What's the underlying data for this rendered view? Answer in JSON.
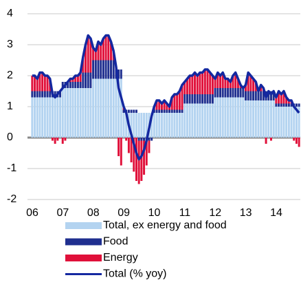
{
  "chart_data": {
    "type": "bar",
    "categories": [
      "06",
      null,
      null,
      null,
      null,
      null,
      null,
      null,
      null,
      null,
      null,
      null,
      "07",
      null,
      null,
      null,
      null,
      null,
      null,
      null,
      null,
      null,
      null,
      null,
      "08",
      null,
      null,
      null,
      null,
      null,
      null,
      null,
      null,
      null,
      null,
      null,
      "09",
      null,
      null,
      null,
      null,
      null,
      null,
      null,
      null,
      null,
      null,
      null,
      "10",
      null,
      null,
      null,
      null,
      null,
      null,
      null,
      null,
      null,
      null,
      null,
      "11",
      null,
      null,
      null,
      null,
      null,
      null,
      null,
      null,
      null,
      null,
      null,
      "12",
      null,
      null,
      null,
      null,
      null,
      null,
      null,
      null,
      null,
      null,
      null,
      "13",
      null,
      null,
      null,
      null,
      null,
      null,
      null,
      null,
      null,
      null,
      null,
      "14",
      null,
      null,
      null,
      null,
      null,
      null,
      null,
      null,
      null
    ],
    "series": [
      {
        "name": "Total, ex energy and food",
        "color": "#b3d3f0",
        "values": [
          1.3,
          1.3,
          1.3,
          1.3,
          1.3,
          1.3,
          1.3,
          1.3,
          1.3,
          1.3,
          1.3,
          1.3,
          1.6,
          1.6,
          1.6,
          1.6,
          1.6,
          1.6,
          1.6,
          1.6,
          1.6,
          1.6,
          1.6,
          1.6,
          1.9,
          1.9,
          1.9,
          1.9,
          1.9,
          1.9,
          1.9,
          1.9,
          1.9,
          1.9,
          1.9,
          1.9,
          0.8,
          0.8,
          0.8,
          0.8,
          0.8,
          0.8,
          0.8,
          0.8,
          0.8,
          0.8,
          0.8,
          0.8,
          0.8,
          0.8,
          0.8,
          0.8,
          0.8,
          0.8,
          0.8,
          0.8,
          0.8,
          0.8,
          0.8,
          0.8,
          1.1,
          1.1,
          1.1,
          1.1,
          1.1,
          1.1,
          1.1,
          1.1,
          1.1,
          1.1,
          1.1,
          1.1,
          1.3,
          1.3,
          1.3,
          1.3,
          1.3,
          1.3,
          1.3,
          1.3,
          1.3,
          1.3,
          1.3,
          1.3,
          1.2,
          1.2,
          1.2,
          1.2,
          1.2,
          1.2,
          1.2,
          1.2,
          1.2,
          1.2,
          1.2,
          1.2,
          1.0,
          1.0,
          1.0,
          1.0,
          1.0,
          1.0,
          1.0,
          1.0,
          1.0,
          1.0
        ]
      },
      {
        "name": "Food",
        "color": "#1f2f8f",
        "values": [
          0.2,
          0.2,
          0.2,
          0.2,
          0.2,
          0.2,
          0.2,
          0.2,
          0.2,
          0.2,
          0.2,
          0.2,
          0.2,
          0.2,
          0.2,
          0.2,
          0.2,
          0.2,
          0.2,
          0.2,
          0.5,
          0.5,
          0.5,
          0.5,
          0.6,
          0.6,
          0.6,
          0.6,
          0.6,
          0.6,
          0.6,
          0.6,
          0.6,
          0.3,
          0.3,
          0.3,
          0.1,
          0.1,
          0.1,
          0.1,
          0.1,
          0.1,
          -0.1,
          -0.1,
          -0.1,
          -0.1,
          -0.1,
          -0.1,
          0.1,
          0.1,
          0.1,
          0.1,
          0.1,
          0.1,
          0.1,
          0.1,
          0.1,
          0.1,
          0.1,
          0.1,
          0.3,
          0.3,
          0.3,
          0.3,
          0.3,
          0.3,
          0.3,
          0.3,
          0.3,
          0.3,
          0.3,
          0.3,
          0.3,
          0.3,
          0.3,
          0.3,
          0.3,
          0.3,
          0.3,
          0.3,
          0.3,
          0.3,
          0.3,
          0.3,
          0.3,
          0.3,
          0.3,
          0.3,
          0.3,
          0.3,
          0.3,
          0.3,
          0.3,
          0.3,
          0.3,
          0.3,
          0.1,
          0.1,
          0.1,
          0.1,
          0.1,
          0.1,
          0.1,
          0.1,
          0.1,
          0.1
        ]
      },
      {
        "name": "Energy",
        "color": "#e0103a",
        "values": [
          0.5,
          0.5,
          0.4,
          0.6,
          0.6,
          0.5,
          0.5,
          0.4,
          -0.1,
          -0.2,
          -0.1,
          0.0,
          -0.2,
          -0.1,
          0.0,
          0.1,
          0.1,
          0.2,
          0.2,
          0.3,
          0.5,
          0.9,
          1.2,
          1.1,
          0.4,
          0.3,
          0.6,
          0.5,
          0.7,
          0.8,
          0.8,
          0.6,
          0.3,
          0.1,
          -0.6,
          -0.9,
          0.1,
          -0.1,
          -0.5,
          -0.8,
          -1.1,
          -1.4,
          -1.4,
          -1.3,
          -1.1,
          -0.8,
          -0.4,
          0.0,
          0.1,
          0.3,
          0.3,
          0.2,
          0.3,
          0.2,
          0.1,
          0.4,
          0.5,
          0.5,
          0.6,
          0.8,
          0.4,
          0.5,
          0.6,
          0.6,
          0.7,
          0.6,
          0.7,
          0.7,
          0.8,
          0.8,
          0.7,
          0.6,
          0.3,
          0.5,
          0.4,
          0.5,
          0.3,
          0.3,
          0.2,
          0.4,
          0.5,
          0.3,
          0.1,
          0.0,
          0.2,
          0.6,
          0.5,
          0.4,
          0.3,
          0.0,
          0.2,
          0.1,
          -0.2,
          0.0,
          -0.1,
          0.0,
          0.2,
          0.4,
          0.3,
          0.4,
          0.2,
          0.1,
          0.1,
          -0.1,
          -0.2,
          -0.3
        ]
      },
      {
        "name": "Total (% yoy)",
        "type": "line",
        "color": "#1428a0",
        "values": [
          2.0,
          2.0,
          1.9,
          2.1,
          2.1,
          2.0,
          2.0,
          1.9,
          1.4,
          1.3,
          1.4,
          1.5,
          1.6,
          1.7,
          1.8,
          1.9,
          1.9,
          2.0,
          2.0,
          2.1,
          2.6,
          3.0,
          3.3,
          3.2,
          2.9,
          2.8,
          3.1,
          3.0,
          3.2,
          3.3,
          3.3,
          3.1,
          2.8,
          2.3,
          1.6,
          1.3,
          1.0,
          0.8,
          0.4,
          0.1,
          -0.2,
          -0.5,
          -0.7,
          -0.6,
          -0.4,
          -0.1,
          0.3,
          0.7,
          1.0,
          1.2,
          1.2,
          1.1,
          1.2,
          1.1,
          1.0,
          1.3,
          1.4,
          1.4,
          1.5,
          1.7,
          1.8,
          1.9,
          2.0,
          2.0,
          2.1,
          2.0,
          2.1,
          2.1,
          2.2,
          2.2,
          2.1,
          2.0,
          1.9,
          2.1,
          2.0,
          2.1,
          1.9,
          1.9,
          1.8,
          2.0,
          2.1,
          1.9,
          1.7,
          1.6,
          1.7,
          2.1,
          2.0,
          1.9,
          1.8,
          1.5,
          1.7,
          1.6,
          1.3,
          1.5,
          1.4,
          1.5,
          1.3,
          1.5,
          1.4,
          1.5,
          1.3,
          1.2,
          1.2,
          1.0,
          0.9,
          0.8
        ]
      }
    ],
    "ylim": [
      -2,
      4
    ],
    "yticks": [
      -2,
      -1,
      0,
      1,
      2,
      3,
      4
    ],
    "grid": true
  }
}
